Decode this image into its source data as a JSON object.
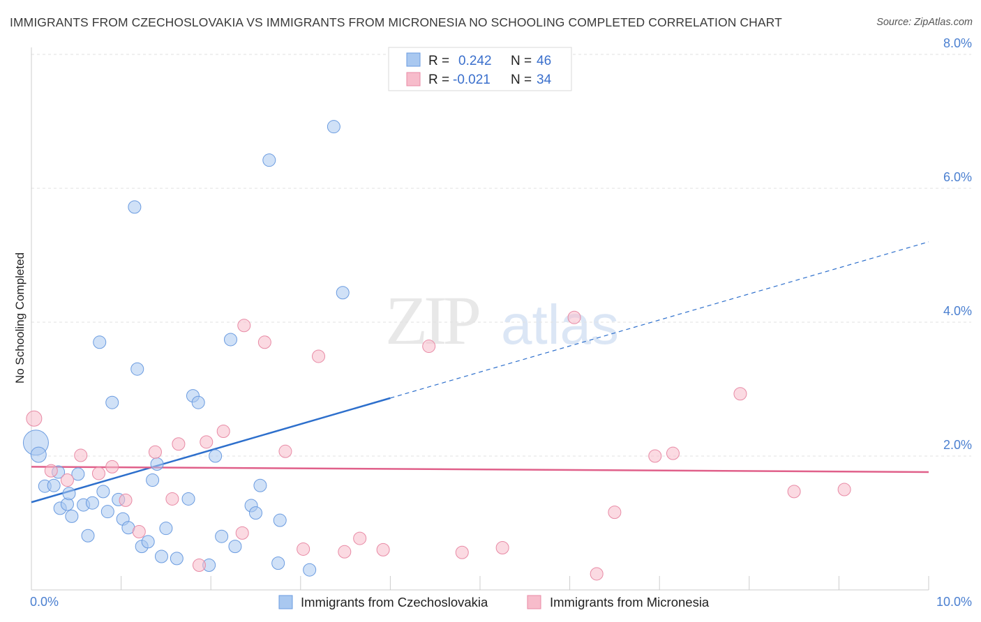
{
  "title": "IMMIGRANTS FROM CZECHOSLOVAKIA VS IMMIGRANTS FROM MICRONESIA NO SCHOOLING COMPLETED CORRELATION CHART",
  "source": "Source: ZipAtlas.com",
  "watermark": {
    "zip": "ZIP",
    "atlas": "atlas"
  },
  "chart_data": {
    "type": "scatter",
    "ylabel": "No Schooling Completed",
    "xlim": [
      0,
      10
    ],
    "ylim": [
      0,
      8
    ],
    "x_tick_labels": {
      "min": "0.0%",
      "max": "10.0%"
    },
    "x_minor_ticks": [
      0,
      1,
      2,
      3,
      4,
      5,
      6,
      7,
      8,
      9,
      10
    ],
    "y_ticks": [
      {
        "value": 2,
        "label": "2.0%"
      },
      {
        "value": 4,
        "label": "4.0%"
      },
      {
        "value": 6,
        "label": "6.0%"
      },
      {
        "value": 8,
        "label": "8.0%"
      }
    ],
    "legend": [
      {
        "r_label": "R = ",
        "r_value": "0.242",
        "n_label": "N = ",
        "n_value": "46"
      },
      {
        "r_label": "R = ",
        "r_value": "-0.021",
        "n_label": "N = ",
        "n_value": "34"
      }
    ],
    "series": [
      {
        "name": "Immigrants from Czechoslovakia",
        "color": "#a9c8f0",
        "stroke": "#6a9be0",
        "line_color": "#2d6fcc",
        "trend": {
          "x0": 0,
          "y0": 1.31,
          "x_solid_end": 4.0,
          "x1": 10.0,
          "y1": 5.2
        },
        "points": [
          [
            0.05,
            2.2,
            18
          ],
          [
            0.08,
            2.02,
            11
          ],
          [
            0.15,
            1.55,
            9
          ],
          [
            0.25,
            1.56,
            9
          ],
          [
            0.3,
            1.76,
            9
          ],
          [
            0.32,
            1.22,
            9
          ],
          [
            0.4,
            1.28,
            9
          ],
          [
            0.42,
            1.44,
            9
          ],
          [
            0.45,
            1.1,
            9
          ],
          [
            0.52,
            1.73,
            9
          ],
          [
            0.58,
            1.27,
            9
          ],
          [
            0.63,
            0.81,
            9
          ],
          [
            0.68,
            1.3,
            9
          ],
          [
            0.76,
            3.7,
            9
          ],
          [
            0.8,
            1.47,
            9
          ],
          [
            0.85,
            1.17,
            9
          ],
          [
            0.9,
            2.8,
            9
          ],
          [
            0.97,
            1.35,
            9
          ],
          [
            1.02,
            1.06,
            9
          ],
          [
            1.08,
            0.93,
            9
          ],
          [
            1.15,
            5.72,
            9
          ],
          [
            1.18,
            3.3,
            9
          ],
          [
            1.23,
            0.65,
            9
          ],
          [
            1.3,
            0.72,
            9
          ],
          [
            1.35,
            1.64,
            9
          ],
          [
            1.4,
            1.88,
            9
          ],
          [
            1.45,
            0.5,
            9
          ],
          [
            1.5,
            0.92,
            9
          ],
          [
            1.62,
            0.47,
            9
          ],
          [
            1.75,
            1.36,
            9
          ],
          [
            1.8,
            2.9,
            9
          ],
          [
            1.86,
            2.8,
            9
          ],
          [
            1.98,
            0.37,
            9
          ],
          [
            2.05,
            2.0,
            9
          ],
          [
            2.12,
            0.8,
            9
          ],
          [
            2.22,
            3.74,
            9
          ],
          [
            2.27,
            0.65,
            9
          ],
          [
            2.45,
            1.26,
            9
          ],
          [
            2.5,
            1.15,
            9
          ],
          [
            2.55,
            1.56,
            9
          ],
          [
            2.65,
            6.42,
            9
          ],
          [
            2.75,
            0.4,
            9
          ],
          [
            2.77,
            1.04,
            9
          ],
          [
            3.1,
            0.3,
            9
          ],
          [
            3.37,
            6.92,
            9
          ],
          [
            3.47,
            4.44,
            9
          ]
        ]
      },
      {
        "name": "Immigrants from Micronesia",
        "color": "#f7bccb",
        "stroke": "#e88aa5",
        "line_color": "#e0608a",
        "trend": {
          "x0": 0,
          "y0": 1.84,
          "x_solid_end": 10.0,
          "x1": 10.0,
          "y1": 1.76
        },
        "points": [
          [
            0.03,
            2.56,
            11
          ],
          [
            0.22,
            1.78,
            9
          ],
          [
            0.4,
            1.64,
            9
          ],
          [
            0.55,
            2.01,
            9
          ],
          [
            0.75,
            1.74,
            9
          ],
          [
            0.9,
            1.84,
            9
          ],
          [
            1.05,
            1.34,
            9
          ],
          [
            1.2,
            0.87,
            9
          ],
          [
            1.38,
            2.06,
            9
          ],
          [
            1.57,
            1.36,
            9
          ],
          [
            1.64,
            2.18,
            9
          ],
          [
            1.87,
            0.37,
            9
          ],
          [
            1.95,
            2.21,
            9
          ],
          [
            2.14,
            2.37,
            9
          ],
          [
            2.35,
            0.85,
            9
          ],
          [
            2.37,
            3.95,
            9
          ],
          [
            2.6,
            3.7,
            9
          ],
          [
            2.83,
            2.07,
            9
          ],
          [
            3.03,
            0.61,
            9
          ],
          [
            3.2,
            3.49,
            9
          ],
          [
            3.49,
            0.57,
            9
          ],
          [
            3.66,
            0.77,
            9
          ],
          [
            3.92,
            0.6,
            9
          ],
          [
            4.43,
            3.64,
            9
          ],
          [
            4.8,
            0.56,
            9
          ],
          [
            5.25,
            0.63,
            9
          ],
          [
            6.05,
            4.07,
            9
          ],
          [
            6.3,
            0.24,
            9
          ],
          [
            6.5,
            1.16,
            9
          ],
          [
            6.95,
            2.0,
            9
          ],
          [
            7.15,
            2.04,
            9
          ],
          [
            7.9,
            2.93,
            9
          ],
          [
            8.5,
            1.47,
            9
          ],
          [
            9.06,
            1.5,
            9
          ]
        ]
      }
    ]
  }
}
